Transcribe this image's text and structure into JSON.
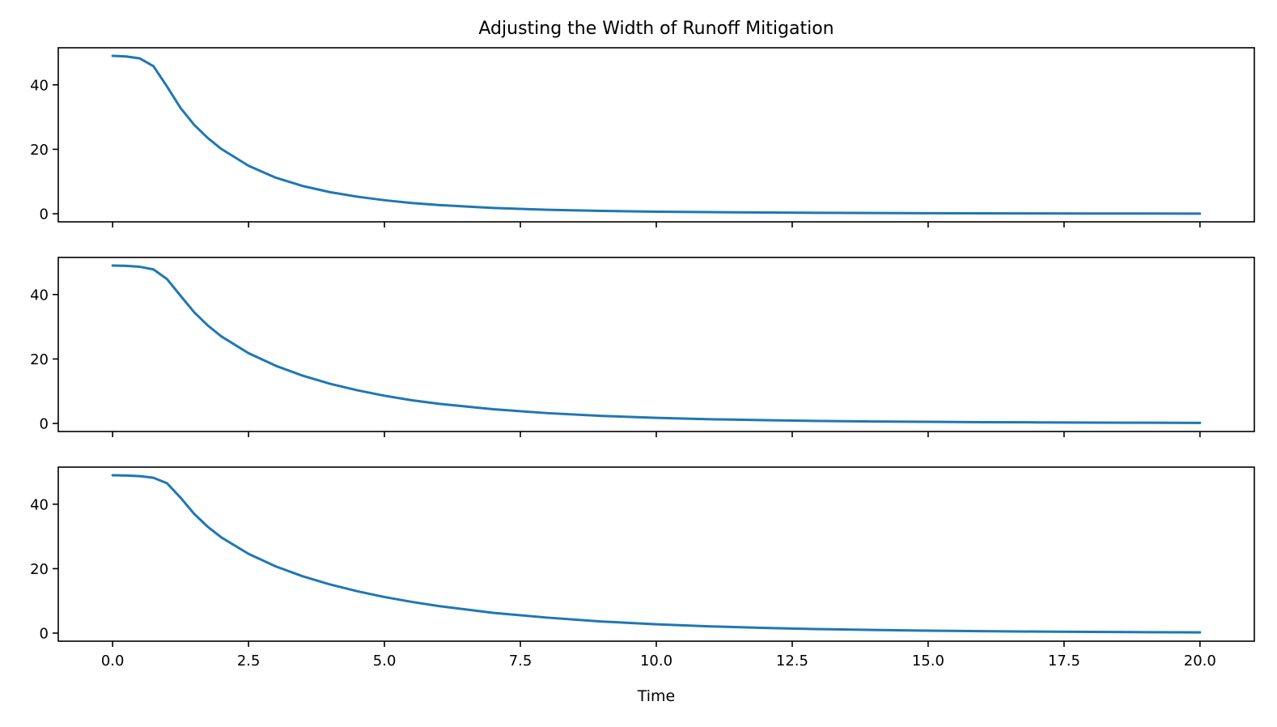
{
  "figure": {
    "title": "Adjusting the Width of Runoff Mitigation",
    "xlabel": "Time"
  },
  "chart_data": [
    {
      "type": "line",
      "title": "",
      "xlabel": "",
      "ylabel": "",
      "xlim": [
        -1,
        21
      ],
      "ylim": [
        -2.5,
        51.5
      ],
      "xticks": [
        0,
        2.5,
        5,
        7.5,
        10,
        12.5,
        15,
        17.5,
        20
      ],
      "xtick_labels_visible": false,
      "yticks": [
        0,
        20,
        40
      ],
      "ytick_labels": [
        "0",
        "20",
        "40"
      ],
      "grid": false,
      "color": "#1f77b4",
      "x": [
        0,
        0.25,
        0.5,
        0.75,
        1,
        1.25,
        1.5,
        1.75,
        2,
        2.5,
        3,
        3.5,
        4,
        4.5,
        5,
        5.5,
        6,
        7,
        8,
        9,
        10,
        11,
        12,
        13,
        14,
        15,
        16,
        17,
        18,
        19,
        20
      ],
      "y": [
        49,
        48.8,
        48.2,
        45.8,
        39.5,
        32.8,
        27.6,
        23.5,
        20.1,
        14.9,
        11.2,
        8.6,
        6.7,
        5.3,
        4.2,
        3.35,
        2.7,
        1.8,
        1.25,
        0.9,
        0.65,
        0.5,
        0.38,
        0.3,
        0.23,
        0.18,
        0.14,
        0.11,
        0.09,
        0.07,
        0.05
      ]
    },
    {
      "type": "line",
      "title": "",
      "xlabel": "",
      "ylabel": "",
      "xlim": [
        -1,
        21
      ],
      "ylim": [
        -2.5,
        51.5
      ],
      "xticks": [
        0,
        2.5,
        5,
        7.5,
        10,
        12.5,
        15,
        17.5,
        20
      ],
      "xtick_labels_visible": false,
      "yticks": [
        0,
        20,
        40
      ],
      "ytick_labels": [
        "0",
        "20",
        "40"
      ],
      "grid": false,
      "color": "#1f77b4",
      "x": [
        0,
        0.25,
        0.5,
        0.75,
        1,
        1.25,
        1.5,
        1.75,
        2,
        2.5,
        3,
        3.5,
        4,
        4.5,
        5,
        5.5,
        6,
        7,
        8,
        9,
        10,
        11,
        12,
        13,
        14,
        15,
        16,
        17,
        18,
        19,
        20
      ],
      "y": [
        49,
        48.9,
        48.6,
        47.8,
        44.8,
        39.6,
        34.5,
        30.4,
        27.0,
        21.8,
        17.9,
        14.8,
        12.3,
        10.3,
        8.6,
        7.2,
        6.1,
        4.4,
        3.2,
        2.35,
        1.75,
        1.3,
        1.0,
        0.78,
        0.62,
        0.5,
        0.4,
        0.33,
        0.27,
        0.22,
        0.18
      ]
    },
    {
      "type": "line",
      "title": "",
      "xlabel": "Time",
      "ylabel": "",
      "xlim": [
        -1,
        21
      ],
      "ylim": [
        -2.5,
        51.5
      ],
      "xticks": [
        0,
        2.5,
        5,
        7.5,
        10,
        12.5,
        15,
        17.5,
        20
      ],
      "xtick_labels": [
        "0.0",
        "2.5",
        "5.0",
        "7.5",
        "10.0",
        "12.5",
        "15.0",
        "17.5",
        "20.0"
      ],
      "xtick_labels_visible": true,
      "yticks": [
        0,
        20,
        40
      ],
      "ytick_labels": [
        "0",
        "20",
        "40"
      ],
      "grid": false,
      "color": "#1f77b4",
      "x": [
        0,
        0.25,
        0.5,
        0.75,
        1,
        1.25,
        1.5,
        1.75,
        2,
        2.5,
        3,
        3.5,
        4,
        4.5,
        5,
        5.5,
        6,
        7,
        8,
        9,
        10,
        11,
        12,
        13,
        14,
        15,
        16,
        17,
        18,
        19,
        20
      ],
      "y": [
        49,
        48.9,
        48.7,
        48.2,
        46.5,
        42.0,
        37.0,
        33.0,
        29.7,
        24.6,
        20.7,
        17.6,
        15.1,
        13.0,
        11.2,
        9.7,
        8.4,
        6.3,
        4.8,
        3.6,
        2.75,
        2.1,
        1.6,
        1.25,
        0.98,
        0.77,
        0.6,
        0.48,
        0.38,
        0.3,
        0.24
      ]
    }
  ]
}
